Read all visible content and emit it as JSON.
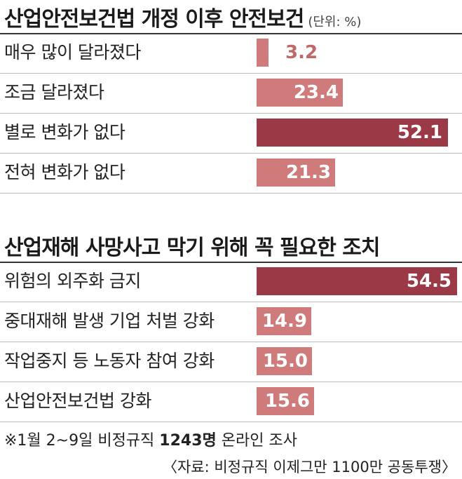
{
  "colors": {
    "light": "#d07b7b",
    "dark": "#9b3a46",
    "label_outside": "#c06868"
  },
  "chart_data": [
    {
      "type": "bar",
      "title": "산업안전보건법 개정 이후 안전보건",
      "unit": "(단위: %)",
      "categories": [
        "매우 많이 달라졌다",
        "조금 달라졌다",
        "별로 변화가 없다",
        "전혀 변화가 없다"
      ],
      "values": [
        3.2,
        23.4,
        52.1,
        21.3
      ],
      "value_labels": [
        "3.2",
        "23.4",
        "52.1",
        "21.3"
      ],
      "highlight": [
        false,
        false,
        true,
        false
      ]
    },
    {
      "type": "bar",
      "title": "산업재해 사망사고 막기 위해 꼭 필요한 조치",
      "categories": [
        "위험의 외주화 금지",
        "중대재해 발생 기업 처벌 강화",
        "작업중지 등 노동자 참여 강화",
        "산업안전보건법 강화"
      ],
      "values": [
        54.5,
        14.9,
        15.0,
        15.6
      ],
      "value_labels": [
        "54.5",
        "14.9",
        "15.0",
        "15.6"
      ],
      "highlight": [
        true,
        false,
        false,
        false
      ]
    }
  ],
  "footnote": {
    "prefix": "※1월 2~9일 비정규직 ",
    "bold": "1243명",
    "suffix": " 온라인 조사"
  },
  "source": "〈자료: 비정규직 이제그만 1100만 공동투쟁〉"
}
